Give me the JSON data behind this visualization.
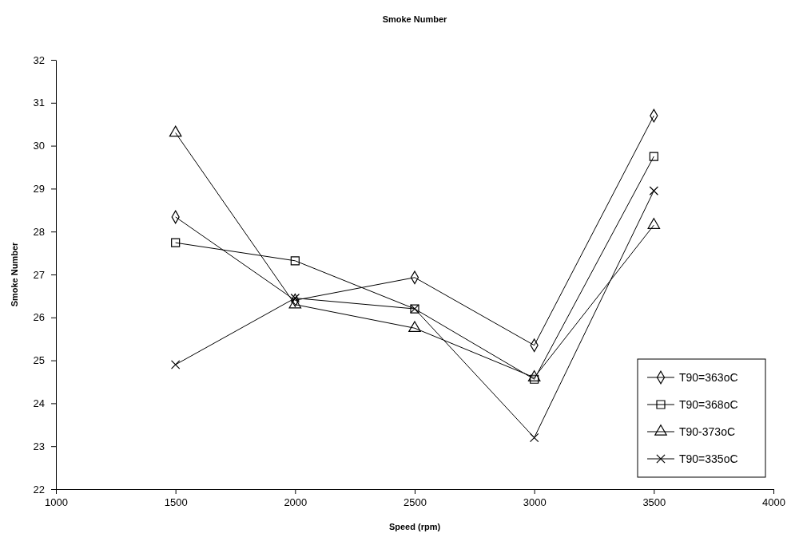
{
  "chart_data": {
    "type": "line",
    "title": "Smoke Number",
    "xlabel": "Speed (rpm)",
    "ylabel": "Smoke Number",
    "x": [
      1500,
      2000,
      2500,
      3000,
      3500
    ],
    "series": [
      {
        "name": "T90=363oC",
        "color": "#000000",
        "marker": "diamond",
        "values": [
          28.34,
          26.4,
          26.93,
          25.35,
          30.7
        ]
      },
      {
        "name": "T90=368oC",
        "color": "#000000",
        "marker": "square",
        "values": [
          27.74,
          27.32,
          26.2,
          24.56,
          29.75
        ]
      },
      {
        "name": "T90-373oC",
        "color": "#000000",
        "marker": "triangle",
        "values": [
          30.3,
          26.3,
          25.75,
          24.6,
          28.15
        ]
      },
      {
        "name": "T90=335oC",
        "color": "#000000",
        "marker": "cross",
        "values": [
          24.9,
          26.45,
          26.2,
          23.2,
          28.95
        ]
      }
    ],
    "xlim": [
      1000,
      4000
    ],
    "xticks": [
      1000,
      1500,
      2000,
      2500,
      3000,
      3500,
      4000
    ],
    "ylim": [
      22,
      32
    ],
    "yticks": [
      22,
      23,
      24,
      25,
      26,
      27,
      28,
      29,
      30,
      31,
      32
    ],
    "grid": false,
    "legend": "bottom right"
  }
}
